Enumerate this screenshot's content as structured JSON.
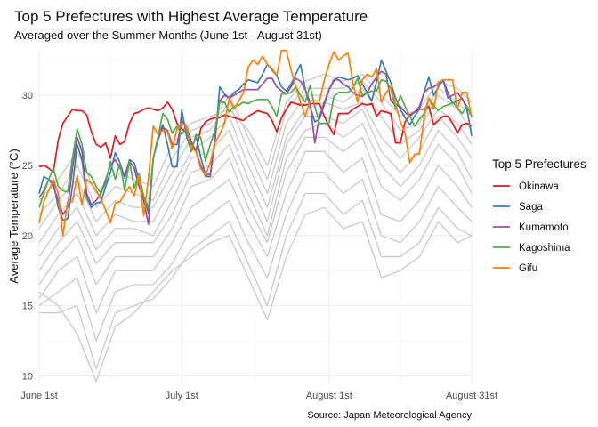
{
  "chart_data": {
    "type": "line",
    "title": "Top 5 Prefectures with Highest Average Temperature",
    "subtitle": "Averaged over the Summer Months (June 1st - August 31st)",
    "caption": "Source: Japan Meteorological Agency",
    "xlabel": "",
    "ylabel": "Average Temperature (°C)",
    "x_tick_labels": [
      "June 1st",
      "July 1st",
      "August 1st",
      "August 31st"
    ],
    "x_tick_dates": [
      "Jun 1",
      "Jul 1",
      "Aug 1",
      "Aug 31"
    ],
    "y_ticks": [
      10,
      15,
      20,
      25,
      30
    ],
    "ylim": [
      9.4,
      33.3
    ],
    "xlim": [
      "Jun 1",
      "Aug 31"
    ],
    "grid": true,
    "legend": {
      "title": "Top 5 Prefectures",
      "position": "right"
    },
    "x": [
      "Jun 1",
      "Jun 2",
      "Jun 3",
      "Jun 4",
      "Jun 5",
      "Jun 6",
      "Jun 7",
      "Jun 8",
      "Jun 9",
      "Jun 10",
      "Jun 11",
      "Jun 12",
      "Jun 13",
      "Jun 14",
      "Jun 15",
      "Jun 16",
      "Jun 17",
      "Jun 18",
      "Jun 19",
      "Jun 20",
      "Jun 21",
      "Jun 22",
      "Jun 23",
      "Jun 24",
      "Jun 25",
      "Jun 26",
      "Jun 27",
      "Jun 28",
      "Jun 29",
      "Jun 30",
      "Jul 1",
      "Jul 2",
      "Jul 3",
      "Jul 4",
      "Jul 5",
      "Jul 6",
      "Jul 7",
      "Jul 8",
      "Jul 9",
      "Jul 10",
      "Jul 11",
      "Jul 12",
      "Jul 13",
      "Jul 14",
      "Jul 15",
      "Jul 16",
      "Jul 17",
      "Jul 18",
      "Jul 19",
      "Jul 20",
      "Jul 21",
      "Jul 22",
      "Jul 23",
      "Jul 24",
      "Jul 25",
      "Jul 26",
      "Jul 27",
      "Jul 28",
      "Jul 29",
      "Jul 30",
      "Jul 31",
      "Aug 1",
      "Aug 2",
      "Aug 3",
      "Aug 4",
      "Aug 5",
      "Aug 6",
      "Aug 7",
      "Aug 8",
      "Aug 9",
      "Aug 10",
      "Aug 11",
      "Aug 12",
      "Aug 13",
      "Aug 14",
      "Aug 15",
      "Aug 16",
      "Aug 17",
      "Aug 18",
      "Aug 19",
      "Aug 20",
      "Aug 21",
      "Aug 22",
      "Aug 23",
      "Aug 24",
      "Aug 25",
      "Aug 26",
      "Aug 27",
      "Aug 28",
      "Aug 29",
      "Aug 30",
      "Aug 31"
    ],
    "series": [
      {
        "name": "Okinawa",
        "color": "#e41a1c",
        "values": [
          24.9,
          25.0,
          24.8,
          24.5,
          26.8,
          28.0,
          28.5,
          29.0,
          28.9,
          28.9,
          28.6,
          27.4,
          26.5,
          26.3,
          26.6,
          25.5,
          27.1,
          26.5,
          26.7,
          28.0,
          28.7,
          28.8,
          29.0,
          29.1,
          29.0,
          28.9,
          29.1,
          29.5,
          29.0,
          28.0,
          27.6,
          27.4,
          26.6,
          26.0,
          27.6,
          28.1,
          28.3,
          28.4,
          28.4,
          28.6,
          28.5,
          28.4,
          28.3,
          28.2,
          28.5,
          28.7,
          28.9,
          28.8,
          28.7,
          28.2,
          27.4,
          28.4,
          29.0,
          29.5,
          29.4,
          29.3,
          29.3,
          29.4,
          29.4,
          29.4,
          28.5,
          27.8,
          27.2,
          28.7,
          28.7,
          28.7,
          29.0,
          29.2,
          29.4,
          29.3,
          29.4,
          28.5,
          28.9,
          28.8,
          28.7,
          26.6,
          26.6,
          28.1,
          28.6,
          28.8,
          29.0,
          29.0,
          29.2,
          27.9,
          28.2,
          28.5,
          28.5,
          28.0,
          27.3,
          27.9,
          28.0,
          27.8
        ]
      },
      {
        "name": "Saga",
        "color": "#377eb8",
        "values": [
          23.0,
          24.2,
          24.0,
          23.8,
          22.0,
          21.1,
          21.2,
          23.5,
          26.5,
          25.4,
          22.7,
          22.0,
          22.3,
          22.4,
          23.5,
          24.5,
          25.9,
          25.2,
          24.1,
          25.4,
          25.2,
          24.0,
          22.8,
          21.6,
          25.5,
          27.0,
          27.9,
          26.5,
          24.9,
          24.9,
          29.0,
          27.1,
          26.0,
          27.1,
          25.6,
          24.3,
          24.4,
          26.6,
          30.6,
          30.1,
          29.8,
          30.2,
          30.4,
          30.8,
          31.1,
          31.0,
          30.9,
          31.5,
          32.2,
          31.8,
          31.4,
          30.6,
          30.3,
          30.8,
          31.5,
          32.2,
          30.4,
          29.2,
          28.1,
          28.3,
          29.3,
          30.4,
          31.0,
          31.3,
          31.2,
          31.1,
          31.2,
          31.4,
          30.8,
          30.2,
          29.6,
          31.0,
          32.5,
          31.7,
          30.9,
          29.8,
          29.0,
          28.4,
          27.9,
          28.5,
          29.0,
          30.2,
          31.3,
          30.0,
          30.6,
          31.1,
          30.2,
          29.4,
          29.6,
          29.8,
          29.0,
          27.1
        ]
      },
      {
        "name": "Kumamoto",
        "color": "#984ea3",
        "values": [
          22.7,
          23.2,
          24.0,
          23.5,
          22.5,
          21.5,
          22.0,
          24.8,
          27.0,
          26.0,
          23.0,
          22.2,
          22.5,
          23.0,
          24.0,
          25.0,
          25.4,
          24.8,
          24.3,
          25.3,
          24.8,
          23.5,
          22.5,
          20.8,
          25.5,
          26.8,
          27.7,
          27.5,
          26.5,
          26.5,
          28.2,
          27.8,
          26.7,
          26.0,
          25.0,
          24.2,
          24.2,
          27.0,
          29.6,
          30.0,
          29.8,
          30.0,
          30.2,
          30.4,
          30.4,
          30.4,
          30.4,
          30.8,
          31.2,
          31.2,
          30.6,
          30.3,
          30.1,
          30.6,
          31.2,
          31.0,
          30.4,
          29.5,
          26.6,
          28.5,
          29.5,
          30.4,
          31.1,
          31.1,
          30.8,
          30.6,
          30.2,
          30.0,
          29.9,
          30.2,
          30.8,
          31.3,
          31.7,
          31.5,
          29.6,
          29.3,
          29.2,
          28.8,
          28.5,
          28.8,
          29.2,
          30.2,
          30.5,
          30.6,
          30.8,
          31.1,
          29.8,
          30.0,
          30.2,
          29.7,
          29.2,
          28.5
        ]
      },
      {
        "name": "Kagoshima",
        "color": "#4daf4a",
        "values": [
          22.0,
          23.0,
          24.0,
          24.8,
          23.5,
          23.2,
          23.1,
          25.5,
          27.6,
          26.5,
          24.5,
          24.2,
          23.5,
          23.0,
          23.8,
          25.3,
          24.0,
          25.2,
          23.2,
          25.3,
          23.4,
          24.4,
          22.8,
          22.0,
          25.5,
          27.0,
          28.7,
          28.3,
          27.3,
          27.8,
          27.2,
          27.6,
          26.0,
          27.2,
          27.0,
          25.3,
          26.5,
          27.5,
          29.5,
          29.5,
          28.8,
          29.2,
          29.3,
          29.5,
          29.4,
          29.6,
          29.7,
          29.7,
          29.7,
          29.2,
          28.5,
          30.1,
          30.1,
          30.2,
          30.6,
          30.0,
          29.5,
          30.7,
          29.2,
          28.0,
          28.0,
          28.0,
          29.9,
          30.2,
          30.2,
          30.2,
          30.5,
          31.2,
          30.0,
          30.2,
          30.3,
          30.3,
          31.1,
          31.0,
          30.5,
          29.0,
          30.0,
          29.2,
          28.5,
          27.8,
          28.3,
          28.7,
          29.8,
          29.3,
          28.9,
          29.2,
          29.3,
          29.5,
          29.1,
          28.7,
          29.2,
          28.5
        ]
      },
      {
        "name": "Gifu",
        "color": "#ff7f00",
        "values": [
          20.9,
          22.4,
          23.2,
          24.0,
          23.0,
          20.0,
          22.4,
          22.4,
          24.3,
          22.2,
          24.0,
          23.7,
          23.2,
          22.6,
          21.8,
          20.9,
          22.3,
          22.4,
          23.0,
          23.5,
          22.8,
          24.3,
          21.4,
          24.1,
          27.8,
          27.2,
          27.5,
          27.4,
          26.2,
          27.6,
          28.0,
          27.8,
          26.2,
          26.0,
          24.8,
          24.3,
          25.2,
          26.6,
          27.2,
          28.0,
          29.8,
          29.0,
          29.6,
          30.2,
          32.0,
          32.5,
          32.2,
          32.8,
          32.2,
          31.9,
          31.4,
          33.2,
          33.2,
          31.8,
          30.6,
          29.5,
          28.5,
          29.6,
          29.6,
          29.6,
          31.1,
          32.2,
          33.1,
          32.5,
          32.8,
          33.0,
          30.9,
          29.5,
          31.1,
          31.5,
          31.3,
          31.9,
          29.5,
          30.2,
          30.6,
          29.4,
          28.1,
          27.3,
          25.2,
          25.8,
          25.8,
          28.4,
          29.8,
          29.0,
          30.9,
          31.1,
          31.1,
          31.1,
          29.0,
          30.2,
          30.2,
          28.4
        ]
      }
    ],
    "other_prefectures": {
      "color": "#c8c8c8",
      "x": [
        "Jun 1",
        "Jun 5",
        "Jun 9",
        "Jun 13",
        "Jun 17",
        "Jun 21",
        "Jun 25",
        "Jun 29",
        "Jul 3",
        "Jul 7",
        "Jul 11",
        "Jul 15",
        "Jul 19",
        "Jul 23",
        "Jul 27",
        "Jul 31",
        "Aug 4",
        "Aug 8",
        "Aug 12",
        "Aug 16",
        "Aug 20",
        "Aug 24",
        "Aug 28",
        "Aug 31"
      ],
      "series": [
        [
          22.5,
          24.0,
          26.0,
          23.0,
          24.5,
          24.0,
          23.5,
          26.5,
          28.0,
          28.5,
          29.0,
          27.5,
          25.0,
          29.5,
          31.0,
          31.5,
          31.0,
          31.5,
          30.0,
          28.5,
          29.0,
          31.0,
          30.5,
          29.5
        ],
        [
          21.5,
          23.0,
          25.0,
          22.0,
          23.5,
          23.0,
          22.5,
          25.5,
          27.5,
          28.0,
          30.0,
          27.0,
          24.0,
          29.0,
          30.5,
          30.5,
          30.5,
          31.0,
          29.5,
          27.5,
          28.0,
          30.5,
          29.5,
          28.5
        ],
        [
          20.5,
          22.5,
          24.0,
          21.0,
          22.5,
          22.0,
          22.0,
          24.5,
          27.0,
          27.5,
          29.5,
          26.0,
          23.0,
          28.0,
          30.0,
          30.0,
          29.5,
          30.5,
          28.5,
          26.5,
          27.5,
          30.0,
          29.0,
          27.5
        ],
        [
          19.5,
          21.5,
          23.0,
          20.0,
          21.5,
          21.0,
          21.0,
          23.5,
          26.0,
          27.0,
          28.5,
          25.0,
          22.0,
          27.0,
          29.0,
          29.5,
          29.0,
          29.5,
          27.0,
          25.5,
          27.0,
          29.0,
          28.0,
          26.5
        ],
        [
          18.5,
          20.5,
          22.0,
          19.0,
          20.5,
          20.5,
          20.0,
          22.5,
          25.5,
          26.0,
          27.5,
          24.0,
          21.0,
          26.5,
          28.5,
          28.5,
          28.0,
          29.0,
          26.0,
          24.5,
          26.0,
          28.5,
          27.0,
          25.5
        ],
        [
          17.5,
          19.5,
          21.0,
          18.0,
          19.5,
          19.5,
          19.5,
          21.5,
          24.5,
          25.0,
          26.5,
          23.0,
          20.0,
          25.5,
          27.5,
          28.0,
          27.0,
          28.0,
          25.0,
          23.5,
          25.0,
          27.5,
          26.0,
          24.0
        ],
        [
          16.5,
          18.5,
          20.0,
          16.5,
          18.5,
          18.5,
          18.5,
          20.5,
          23.5,
          24.0,
          25.5,
          22.0,
          19.5,
          24.5,
          27.0,
          27.0,
          26.0,
          27.0,
          23.5,
          22.5,
          24.0,
          26.5,
          25.0,
          23.0
        ],
        [
          15.5,
          17.5,
          18.5,
          14.5,
          17.5,
          17.5,
          17.5,
          19.5,
          22.0,
          23.0,
          24.0,
          21.0,
          18.5,
          23.0,
          26.0,
          26.0,
          24.5,
          25.5,
          21.5,
          21.0,
          22.5,
          25.0,
          23.5,
          22.0
        ],
        [
          15.0,
          16.0,
          17.0,
          12.5,
          16.0,
          16.5,
          16.5,
          18.0,
          20.5,
          21.5,
          22.5,
          19.5,
          17.0,
          21.5,
          24.5,
          24.5,
          23.0,
          24.0,
          20.0,
          19.5,
          21.0,
          23.5,
          22.0,
          21.0
        ],
        [
          14.5,
          14.5,
          15.0,
          10.5,
          14.5,
          15.0,
          15.5,
          17.0,
          19.0,
          20.0,
          21.0,
          18.0,
          15.0,
          20.0,
          23.0,
          23.0,
          21.5,
          22.5,
          18.5,
          18.5,
          19.5,
          22.0,
          20.5,
          20.0
        ],
        [
          16.0,
          15.0,
          13.0,
          9.6,
          13.5,
          14.5,
          16.0,
          17.5,
          18.5,
          19.5,
          20.0,
          17.0,
          14.0,
          18.5,
          21.5,
          22.0,
          20.5,
          21.0,
          17.0,
          17.5,
          18.5,
          21.0,
          19.5,
          20.0
        ]
      ]
    }
  }
}
